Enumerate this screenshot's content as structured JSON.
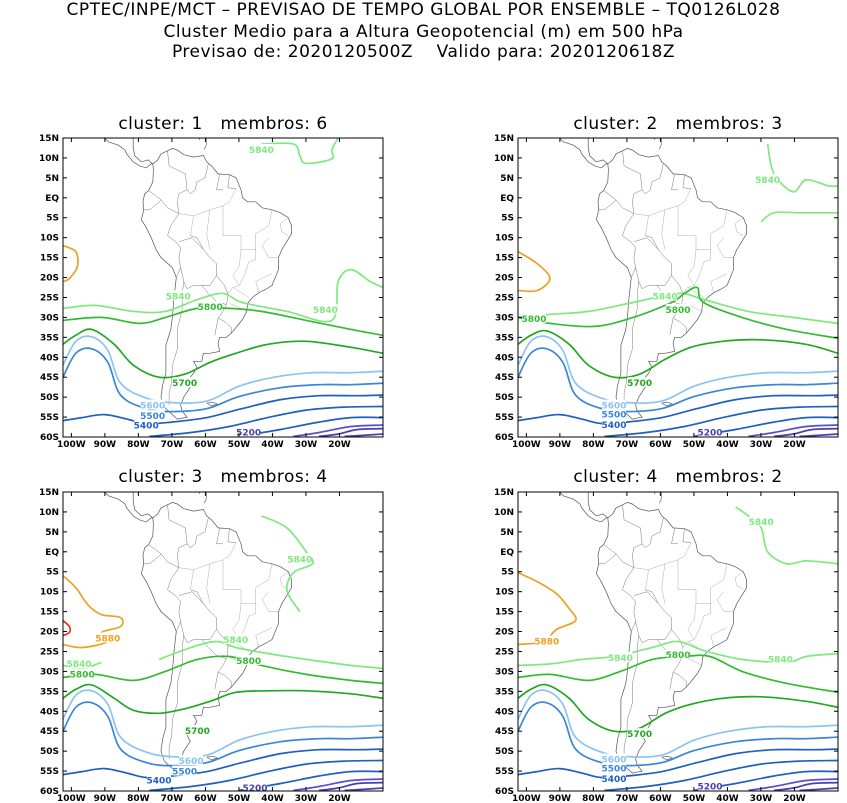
{
  "header": {
    "line1": "CPTEC/INPE/MCT – PREVISAO DE TEMPO GLOBAL POR ENSEMBLE – TQ0126L028",
    "line2": "Cluster Medio para a Altura Geopotencial (m) em 500 hPa",
    "line3": "Previsao de: 2020120500Z    Valido para: 2020120618Z"
  },
  "axes": {
    "lat_labels": [
      "15N",
      "10N",
      "5N",
      "EQ",
      "5S",
      "10S",
      "15S",
      "20S",
      "25S",
      "30S",
      "35S",
      "40S",
      "45S",
      "50S",
      "55S",
      "60S"
    ],
    "lon_labels": [
      "100W",
      "90W",
      "80W",
      "70W",
      "60W",
      "50W",
      "40W",
      "30W",
      "20W"
    ]
  },
  "colors": {
    "c5200": "#4a3fb0",
    "c5300": "#5a4fc8",
    "c5400": "#1f5fc0",
    "c5500": "#3b86d8",
    "c5600": "#8ac4f2",
    "c5700": "#21a821",
    "c5800": "#33bb33",
    "c5840": "#7fe87f",
    "c5880": "#f0a020",
    "c5920": "#e83020",
    "coast": "#555555"
  },
  "panels": [
    {
      "title": "cluster: 1   membros: 6",
      "labels": [
        "5840",
        "5840",
        "5800",
        "5840",
        "5700",
        "5600",
        "5500",
        "5400",
        "5200"
      ]
    },
    {
      "title": "cluster: 2   membros: 3",
      "labels": [
        "5840",
        "5840",
        "5800",
        "5800",
        "5700",
        "5600",
        "5500",
        "5400",
        "5200"
      ]
    },
    {
      "title": "cluster: 3   membros: 4",
      "labels": [
        "5840",
        "5880",
        "5840",
        "5800",
        "5840",
        "5800",
        "5700",
        "5600",
        "5500",
        "5400",
        "5200"
      ]
    },
    {
      "title": "cluster: 4   membros: 2",
      "labels": [
        "5840",
        "5880",
        "5840",
        "5800",
        "5840",
        "5700",
        "5600",
        "5500",
        "5400",
        "5200"
      ]
    }
  ]
}
